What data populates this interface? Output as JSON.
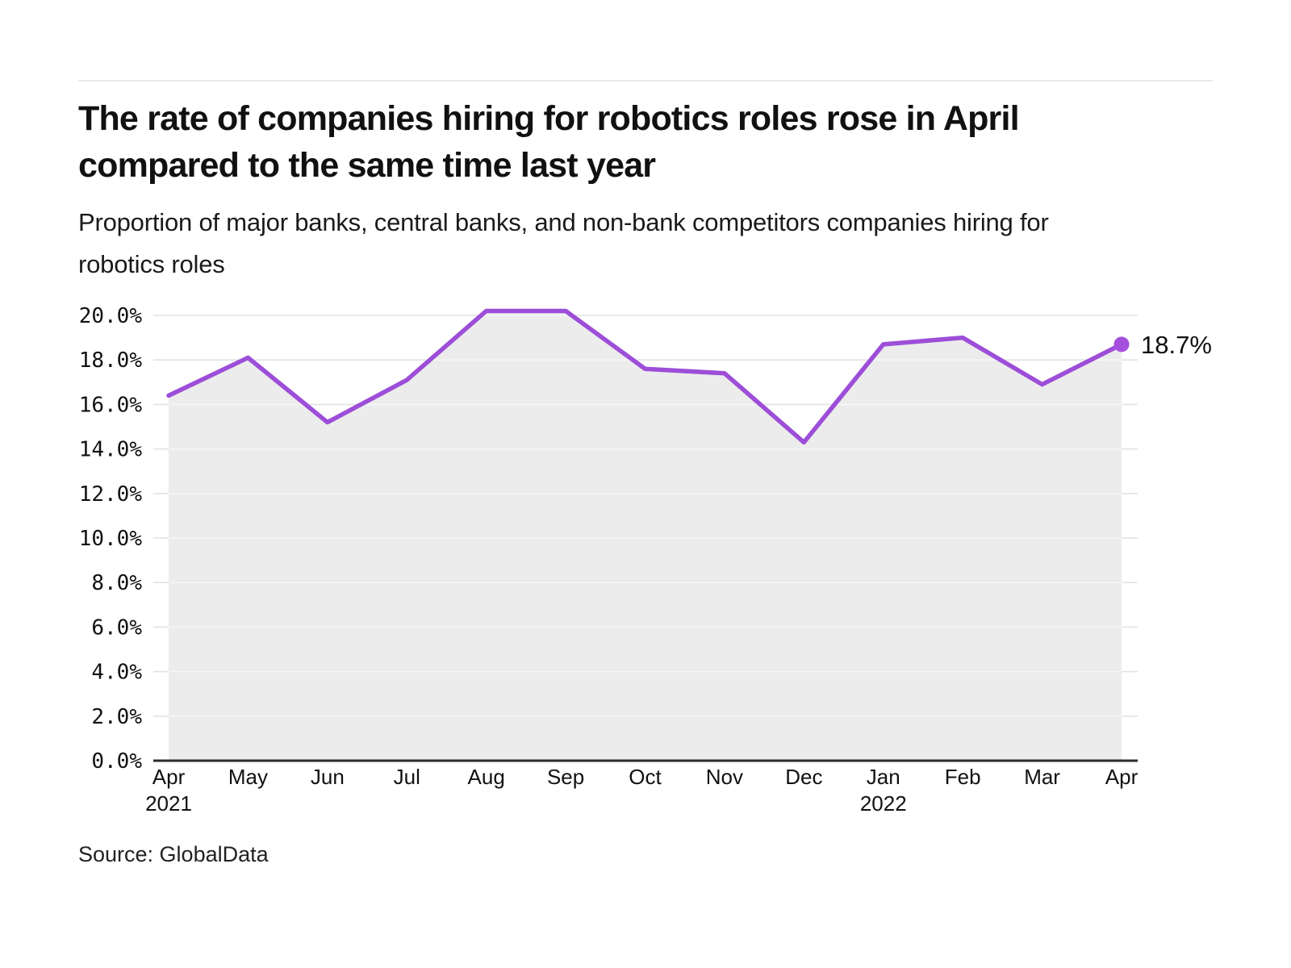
{
  "chart_data": {
    "type": "area",
    "title": "The rate of companies hiring for robotics roles rose in April compared to the same time last year",
    "subtitle": "Proportion of major banks, central banks, and non-bank competitors companies hiring for robotics roles",
    "categories": [
      {
        "label": "Apr",
        "sublabel": "2021"
      },
      {
        "label": "May",
        "sublabel": ""
      },
      {
        "label": "Jun",
        "sublabel": ""
      },
      {
        "label": "Jul",
        "sublabel": ""
      },
      {
        "label": "Aug",
        "sublabel": ""
      },
      {
        "label": "Sep",
        "sublabel": ""
      },
      {
        "label": "Oct",
        "sublabel": ""
      },
      {
        "label": "Nov",
        "sublabel": ""
      },
      {
        "label": "Dec",
        "sublabel": ""
      },
      {
        "label": "Jan",
        "sublabel": "2022"
      },
      {
        "label": "Feb",
        "sublabel": ""
      },
      {
        "label": "Mar",
        "sublabel": ""
      },
      {
        "label": "Apr",
        "sublabel": ""
      }
    ],
    "values": [
      16.4,
      18.1,
      15.2,
      17.1,
      20.2,
      20.2,
      17.6,
      17.4,
      14.3,
      18.7,
      19.0,
      16.9,
      18.7
    ],
    "unit": "%",
    "ylim": [
      0,
      20
    ],
    "ytick_step": 2,
    "yticks": [
      "0.0%",
      "2.0%",
      "4.0%",
      "6.0%",
      "8.0%",
      "10.0%",
      "12.0%",
      "14.0%",
      "16.0%",
      "18.0%",
      "20.0%"
    ],
    "end_label": "18.7%",
    "grid": true,
    "legend": "none",
    "colors": {
      "line": "#9d4ed8",
      "dot": "#a44fdd",
      "area_fill": "#ececec",
      "grid": "#e2e2e2",
      "grid_on_fill": "#f6f6f6",
      "axis": "#2b2b2b",
      "text": "#111111"
    }
  },
  "footer": {
    "source": "Source: GlobalData"
  }
}
